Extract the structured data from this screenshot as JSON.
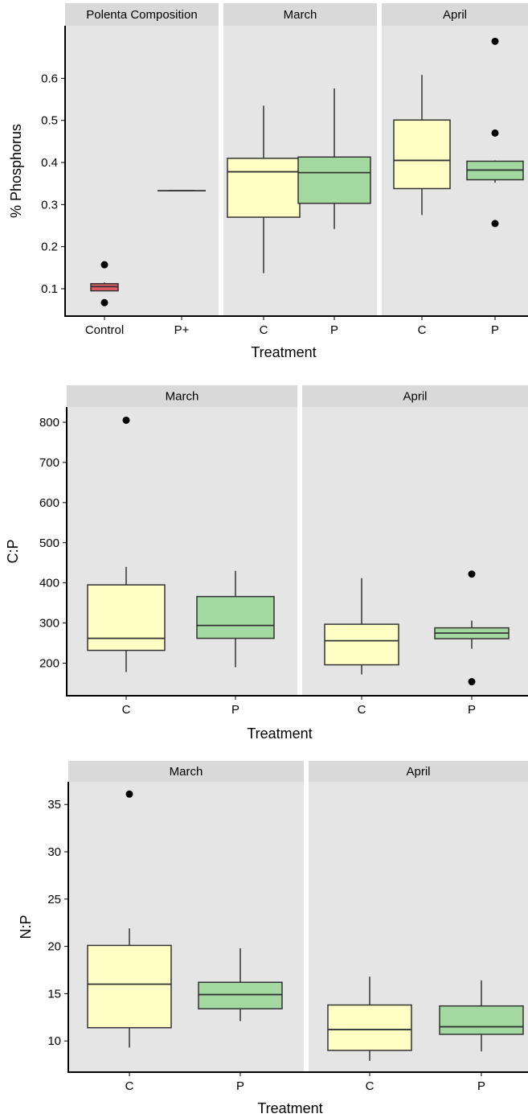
{
  "colors": {
    "panel_bg": "#e5e5e5",
    "strip_bg": "#d9d9d9",
    "control": "#e05a61",
    "c": "#ffffc5",
    "p": "#a3d9a0",
    "line": "#333333"
  },
  "chart_data": [
    {
      "type": "boxplot",
      "ylabel": "% Phosphorus",
      "xlabel": "Treatment",
      "ylim": [
        0.035,
        0.725
      ],
      "yticks": [
        0.1,
        0.2,
        0.3,
        0.4,
        0.5,
        0.6
      ],
      "panels": [
        {
          "label": "Polenta Composition",
          "categories": [
            "Control",
            "P+"
          ],
          "boxes": [
            {
              "category": "Control",
              "fill": "control",
              "min": 0.095,
              "q1": 0.095,
              "median": 0.105,
              "q3": 0.112,
              "max": 0.115,
              "outliers": [
                0.157,
                0.067
              ]
            },
            {
              "category": "P+",
              "fill": "control",
              "min": 0.333,
              "q1": 0.333,
              "median": 0.333,
              "q3": 0.333,
              "max": 0.333,
              "outliers": []
            }
          ]
        },
        {
          "label": "March",
          "categories": [
            "C",
            "P"
          ],
          "boxes": [
            {
              "category": "C",
              "fill": "c",
              "min": 0.137,
              "q1": 0.27,
              "median": 0.378,
              "q3": 0.41,
              "max": 0.535,
              "outliers": []
            },
            {
              "category": "P",
              "fill": "p",
              "min": 0.242,
              "q1": 0.303,
              "median": 0.376,
              "q3": 0.413,
              "max": 0.576,
              "outliers": []
            }
          ]
        },
        {
          "label": "April",
          "categories": [
            "C",
            "P"
          ],
          "boxes": [
            {
              "category": "C",
              "fill": "c",
              "min": 0.275,
              "q1": 0.338,
              "median": 0.405,
              "q3": 0.501,
              "max": 0.608,
              "outliers": []
            },
            {
              "category": "P",
              "fill": "p",
              "min": 0.352,
              "q1": 0.359,
              "median": 0.382,
              "q3": 0.403,
              "max": 0.405,
              "outliers": [
                0.688,
                0.47,
                0.255
              ]
            }
          ]
        }
      ]
    },
    {
      "type": "boxplot",
      "ylabel": "C:P",
      "xlabel": "Treatment",
      "ylim": [
        119,
        838
      ],
      "yticks": [
        200,
        300,
        400,
        500,
        600,
        700,
        800
      ],
      "panels": [
        {
          "label": "March",
          "categories": [
            "C",
            "P"
          ],
          "boxes": [
            {
              "category": "C",
              "fill": "c",
              "min": 178,
              "q1": 232,
              "median": 262,
              "q3": 395,
              "max": 440,
              "outliers": [
                805
              ]
            },
            {
              "category": "P",
              "fill": "p",
              "min": 190,
              "q1": 262,
              "median": 294,
              "q3": 366,
              "max": 430,
              "outliers": []
            }
          ]
        },
        {
          "label": "April",
          "categories": [
            "C",
            "P"
          ],
          "boxes": [
            {
              "category": "C",
              "fill": "c",
              "min": 172,
              "q1": 196,
              "median": 256,
              "q3": 297,
              "max": 412,
              "outliers": []
            },
            {
              "category": "P",
              "fill": "p",
              "min": 236,
              "q1": 261,
              "median": 275,
              "q3": 288,
              "max": 306,
              "outliers": [
                422,
                154
              ]
            }
          ]
        }
      ]
    },
    {
      "type": "boxplot",
      "ylabel": "N:P",
      "xlabel": "Treatment",
      "ylim": [
        6.7,
        37.4
      ],
      "yticks": [
        10,
        15,
        20,
        25,
        30,
        35
      ],
      "panels": [
        {
          "label": "March",
          "categories": [
            "C",
            "P"
          ],
          "boxes": [
            {
              "category": "C",
              "fill": "c",
              "min": 9.3,
              "q1": 11.4,
              "median": 16.0,
              "q3": 20.1,
              "max": 21.9,
              "outliers": [
                36.1
              ]
            },
            {
              "category": "P",
              "fill": "p",
              "min": 12.1,
              "q1": 13.4,
              "median": 14.9,
              "q3": 16.2,
              "max": 19.8,
              "outliers": []
            }
          ]
        },
        {
          "label": "April",
          "categories": [
            "C",
            "P"
          ],
          "boxes": [
            {
              "category": "C",
              "fill": "c",
              "min": 7.9,
              "q1": 9.0,
              "median": 11.2,
              "q3": 13.8,
              "max": 16.8,
              "outliers": []
            },
            {
              "category": "P",
              "fill": "p",
              "min": 8.9,
              "q1": 10.7,
              "median": 11.5,
              "q3": 13.7,
              "max": 16.4,
              "outliers": []
            }
          ]
        }
      ]
    }
  ]
}
